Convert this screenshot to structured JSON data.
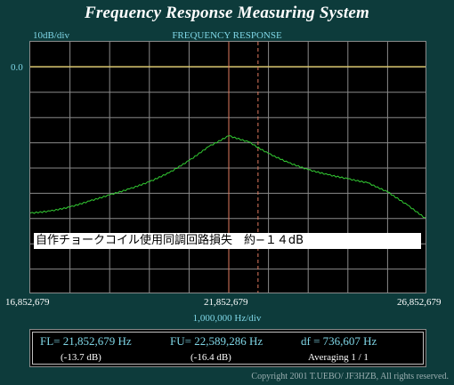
{
  "app": {
    "title": "Frequency Response Measuring System"
  },
  "plot": {
    "scale": "10dB/div",
    "title": "FREQUENCY RESPONSE",
    "ref_level": "0.0",
    "annotation": "自作チョークコイル使用同調回路損失　約−１４dB",
    "span_per_div": "1,000,000  Hz/div"
  },
  "freq_axis": {
    "start": "16,852,679",
    "center": "21,852,679",
    "stop": "26,852,679"
  },
  "readout": {
    "fl": "FL= 21,852,679  Hz",
    "fl_db": "(-13.7 dB)",
    "fu": "FU= 22,589,286  Hz",
    "fu_db": "(-16.4 dB)",
    "df": "df = 736,607  Hz",
    "averaging": "Averaging   1 / 1"
  },
  "copyright": "Copyright 2001 T.UEBO/ JF3HZB, All rights reserved.",
  "colors": {
    "trace": "#33cc33",
    "ref_line": "#e8d36a",
    "marker_fl": "#e07a5f",
    "marker_fu": "#e07a5f",
    "grid": "#8a8a8a"
  },
  "chart_data": {
    "type": "line",
    "title": "FREQUENCY RESPONSE",
    "xlabel": "1,000,000  Hz/div",
    "ylabel": "10dB/div",
    "xlim": [
      16852679,
      26852679
    ],
    "ylim": [
      -50,
      0
    ],
    "grid": true,
    "x": [
      16852679,
      17352679,
      17852679,
      18352679,
      18852679,
      19352679,
      19852679,
      20352679,
      20852679,
      21352679,
      21852679,
      22352679,
      22852679,
      23352679,
      23852679,
      24352679,
      24852679,
      25352679,
      25852679,
      26352679,
      26852679
    ],
    "series": [
      {
        "values": [
          -29.0,
          -28.6,
          -27.8,
          -26.6,
          -25.4,
          -24.2,
          -22.8,
          -21.0,
          -18.6,
          -15.8,
          -13.7,
          -14.9,
          -17.2,
          -19.0,
          -20.4,
          -21.4,
          -22.2,
          -23.0,
          -24.8,
          -27.4,
          -30.3
        ]
      }
    ],
    "markers": [
      {
        "label": "FL",
        "x": 21852679,
        "y": -13.7
      },
      {
        "label": "FU",
        "x": 22589286,
        "y": -16.4
      }
    ]
  }
}
